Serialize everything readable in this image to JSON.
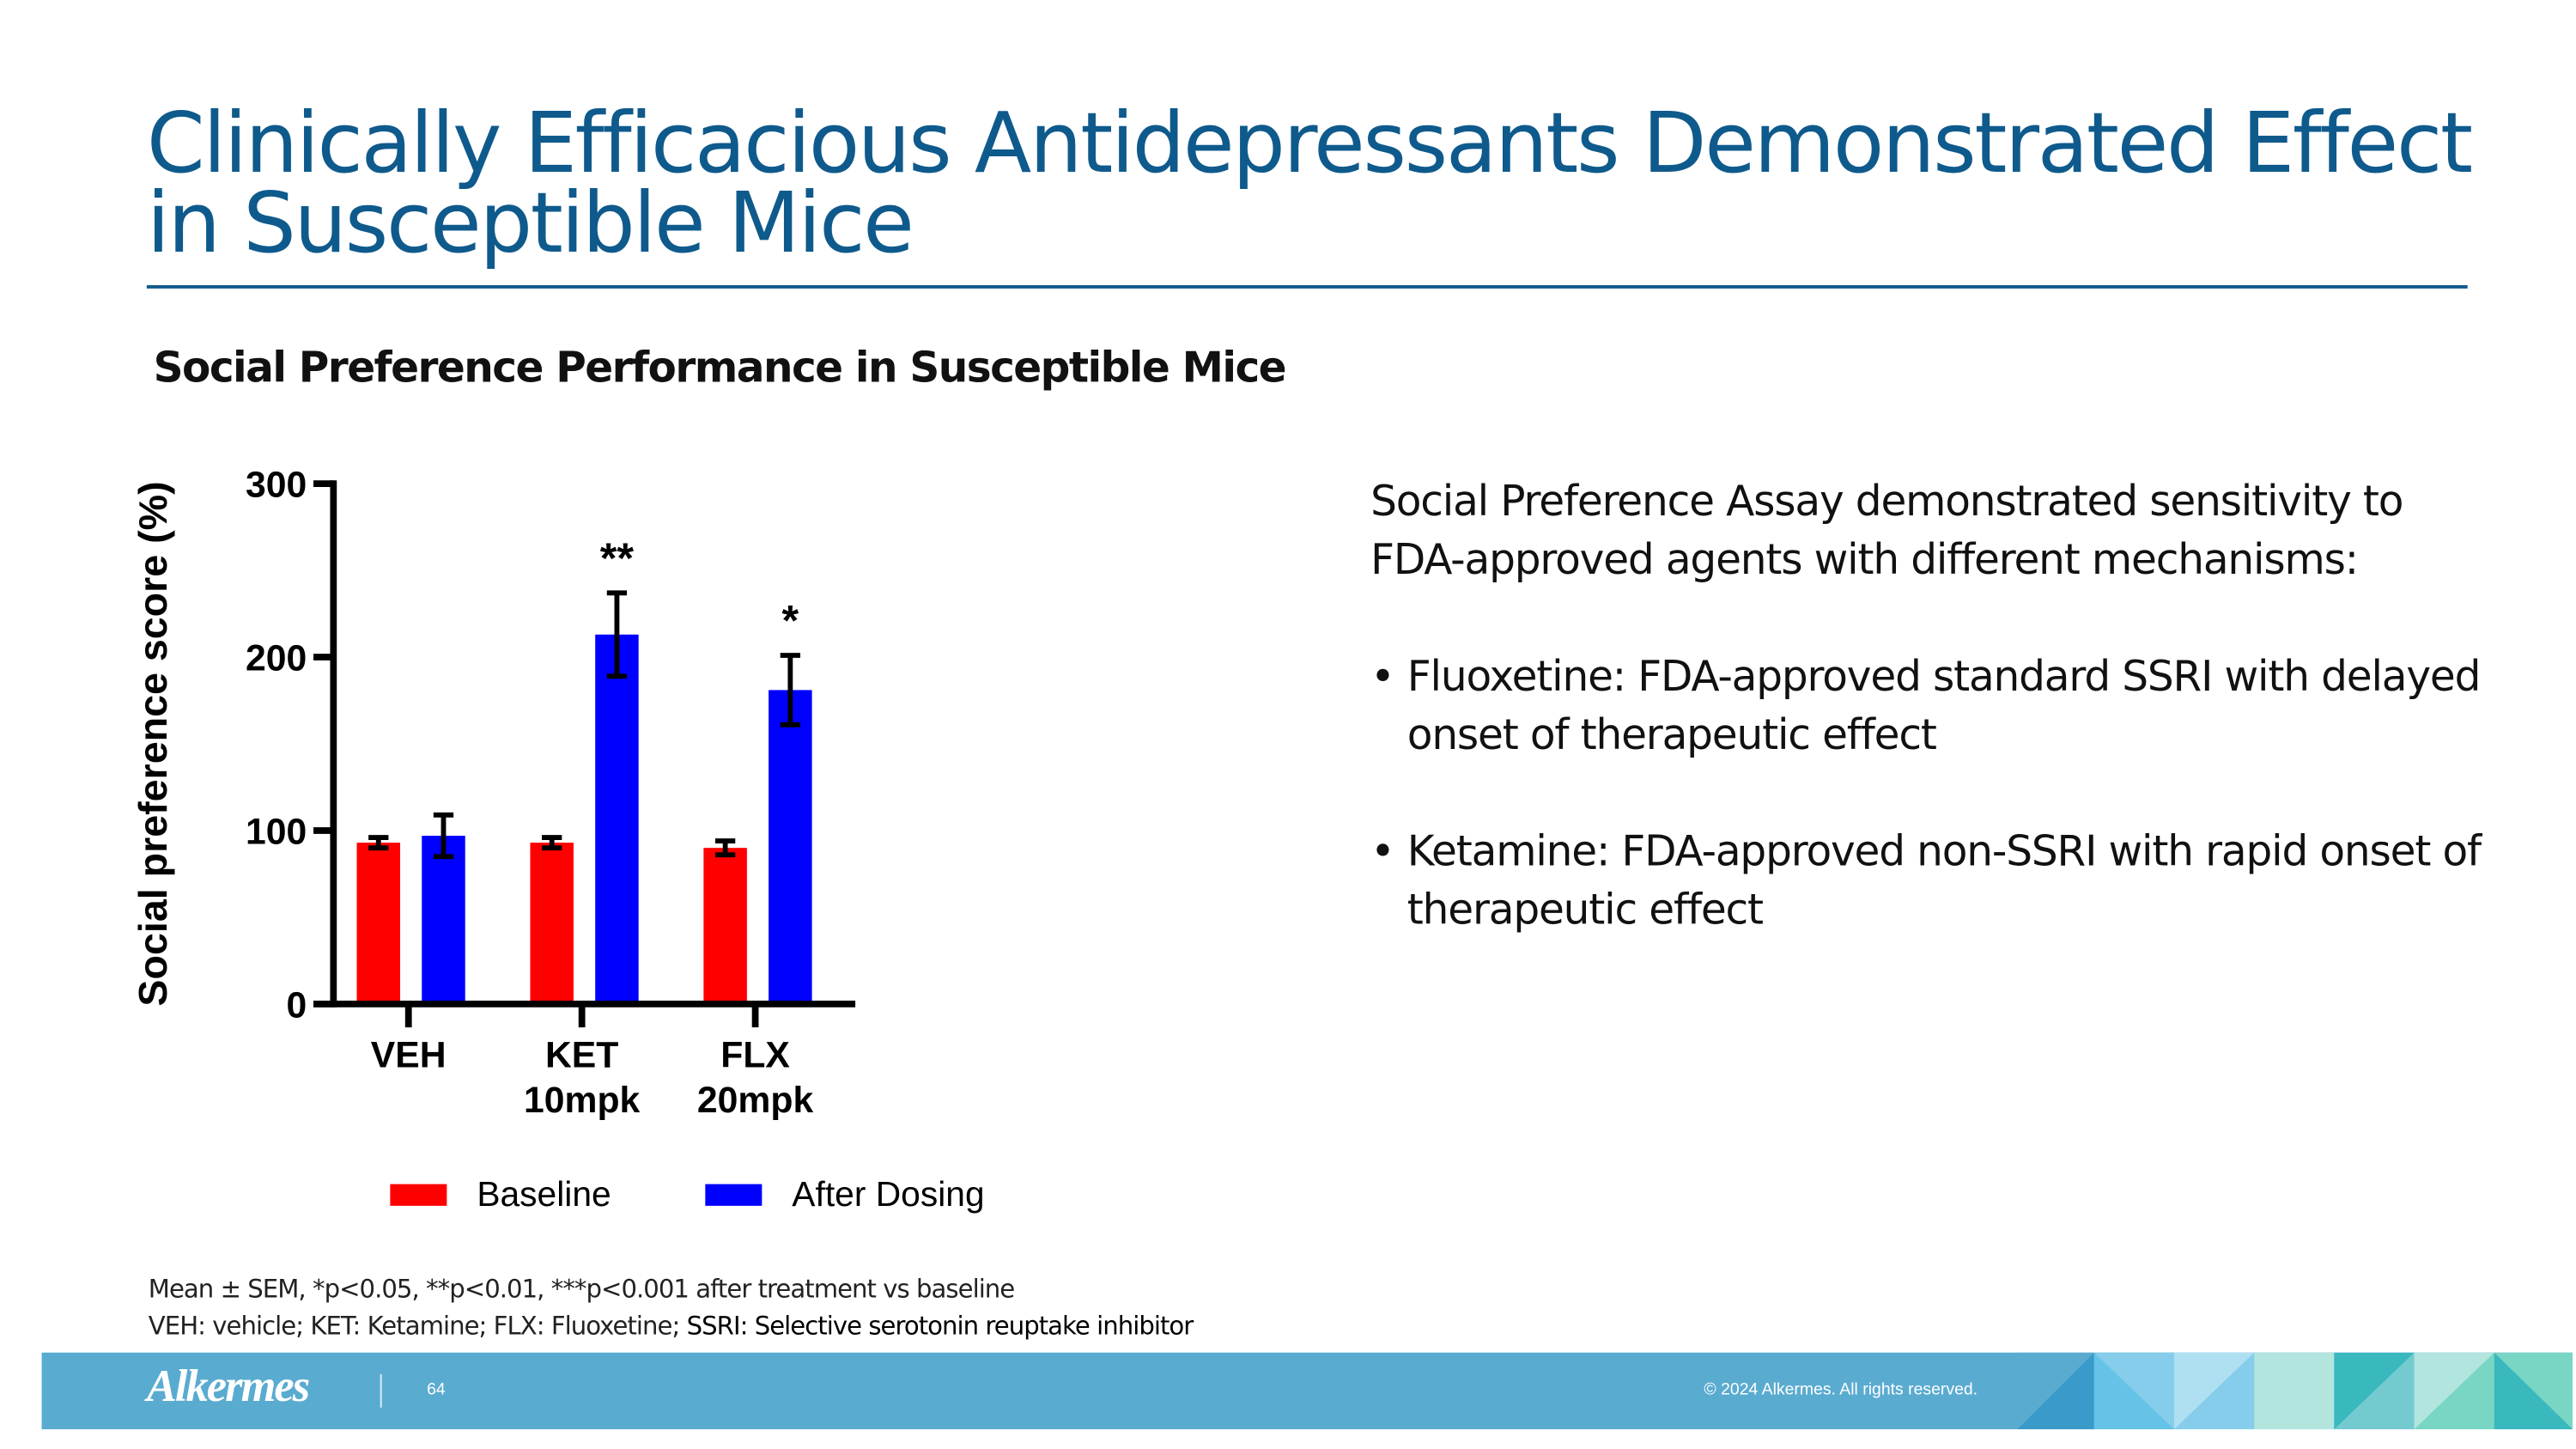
{
  "title": "Clinically Efficacious Antidepressants Demonstrated Effect in Susceptible Mice",
  "subtitle": "Social Preference Performance in Susceptible Mice",
  "right_panel": {
    "intro": "Social Preference Assay demonstrated sensitivity to FDA-approved agents with different mechanisms:",
    "bullets": [
      "Fluoxetine: FDA-approved standard SSRI with delayed onset of therapeutic effect",
      "Ketamine: FDA-approved non-SSRI with rapid onset of therapeutic effect"
    ]
  },
  "footnotes": {
    "line1": "Mean ± SEM, *p<0.05, **p<0.01, ***p<0.001 after treatment vs baseline",
    "line2a": "VEH: vehicle; KET: Ketamine; FLX: Fluoxetine; ",
    "line2b": "SSRI: Selective serotonin reuptake inhibitor"
  },
  "footer": {
    "logo": "Alkermes",
    "page_number": "64",
    "copyright": "© 2024 Alkermes. All rights reserved.",
    "bar_color": "#5aabd0"
  },
  "chart_data": {
    "type": "bar",
    "categories": [
      [
        "VEH"
      ],
      [
        "KET",
        "10mpk"
      ],
      [
        "FLX",
        "20mpk"
      ]
    ],
    "ylabel": "Social preference score (%)",
    "xlabel": "",
    "ylim": [
      0,
      300
    ],
    "yticks": [
      0,
      100,
      200,
      300
    ],
    "grid": false,
    "legend_placement": "bottom",
    "series": [
      {
        "name": "Baseline",
        "color": "#ff0000",
        "values": [
          93,
          93,
          90
        ],
        "sem": [
          3,
          3,
          4
        ]
      },
      {
        "name": "After Dosing",
        "color": "#0000ff",
        "values": [
          97,
          213,
          181
        ],
        "sem": [
          12,
          24,
          20
        ]
      }
    ],
    "annotations": [
      "",
      "**",
      "*"
    ]
  }
}
